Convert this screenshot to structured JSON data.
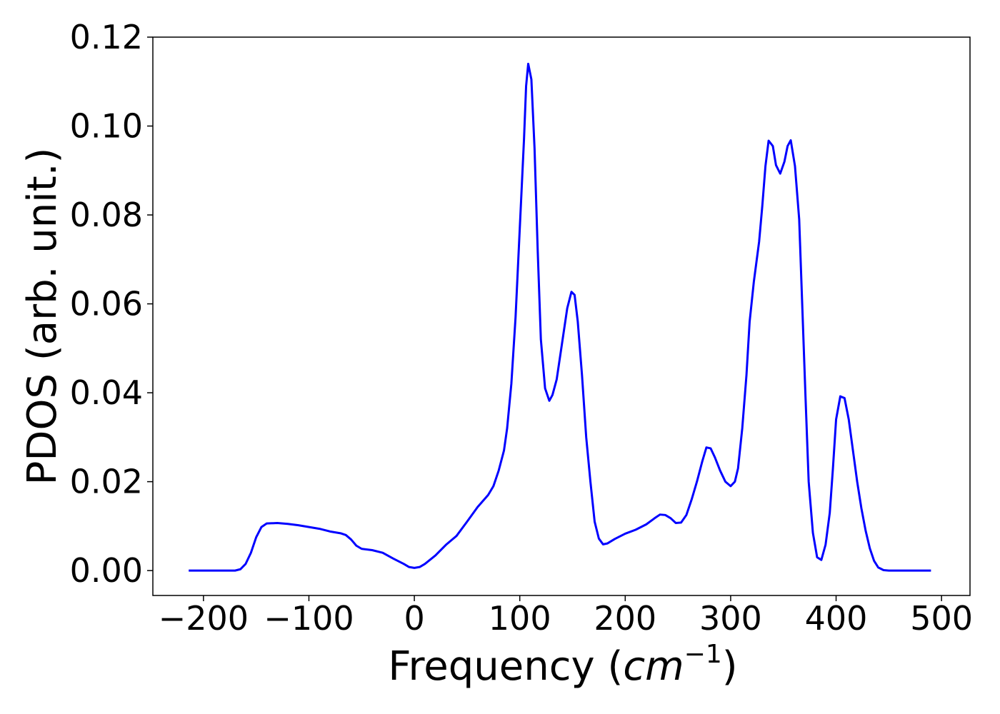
{
  "chart_data": {
    "type": "line",
    "xlabel": {
      "text": "Frequency (",
      "math": "cm",
      "sup": "−1",
      "close": ")"
    },
    "ylabel": "PDOS (arb. unit.)",
    "xlim": [
      -248,
      527
    ],
    "ylim": [
      -0.0056,
      0.12
    ],
    "xticks": [
      {
        "value": -200,
        "label": "−200"
      },
      {
        "value": -100,
        "label": "−100"
      },
      0,
      100,
      200,
      300,
      400,
      500
    ],
    "yticks": [
      {
        "value": 0,
        "label": "0.00"
      },
      {
        "value": 0.02,
        "label": "0.02"
      },
      {
        "value": 0.04,
        "label": "0.04"
      },
      {
        "value": 0.06,
        "label": "0.06"
      },
      {
        "value": 0.08,
        "label": "0.08"
      },
      {
        "value": 0.1,
        "label": "0.10"
      },
      {
        "value": 0.12,
        "label": "0.12"
      }
    ],
    "grid": false,
    "x": [
      -214,
      -170,
      -165,
      -160,
      -155,
      -150,
      -145,
      -140,
      -130,
      -120,
      -110,
      -100,
      -90,
      -80,
      -70,
      -65,
      -60,
      -55,
      -50,
      -40,
      -30,
      -20,
      -10,
      -5,
      0,
      5,
      10,
      20,
      30,
      40,
      50,
      60,
      70,
      75,
      80,
      85,
      88,
      92,
      96,
      100,
      104,
      106,
      108,
      111,
      114,
      117,
      120,
      124,
      128,
      131,
      135,
      140,
      145,
      149,
      152,
      155,
      159,
      163,
      167,
      171,
      175,
      179,
      183,
      190,
      200,
      210,
      220,
      228,
      233,
      238,
      243,
      248,
      253,
      258,
      263,
      268,
      273,
      277,
      281,
      285,
      290,
      295,
      300,
      304,
      307,
      311,
      315,
      318,
      322,
      327,
      330,
      333,
      336,
      340,
      343,
      347,
      351,
      354,
      357,
      361,
      365,
      368,
      371,
      374,
      378,
      382,
      386,
      390,
      394,
      397,
      400,
      404,
      408,
      412,
      416,
      420,
      424,
      428,
      432,
      436,
      440,
      445,
      450,
      490
    ],
    "series": [
      {
        "name": "PDOS",
        "color": "#0000ff",
        "values": [
          0,
          0,
          0.0003,
          0.0015,
          0.004,
          0.0075,
          0.0098,
          0.0106,
          0.0107,
          0.0105,
          0.0102,
          0.0098,
          0.0094,
          0.0088,
          0.0084,
          0.008,
          0.007,
          0.0056,
          0.0049,
          0.0046,
          0.004,
          0.0027,
          0.0015,
          0.0008,
          0.0006,
          0.0008,
          0.0015,
          0.0034,
          0.0058,
          0.0078,
          0.011,
          0.0143,
          0.017,
          0.019,
          0.0225,
          0.027,
          0.032,
          0.042,
          0.057,
          0.077,
          0.097,
          0.109,
          0.114,
          0.1105,
          0.095,
          0.072,
          0.052,
          0.041,
          0.0382,
          0.0395,
          0.043,
          0.051,
          0.059,
          0.0627,
          0.062,
          0.056,
          0.044,
          0.03,
          0.02,
          0.011,
          0.0072,
          0.0059,
          0.0061,
          0.0071,
          0.0083,
          0.0092,
          0.0104,
          0.0118,
          0.0126,
          0.0125,
          0.0118,
          0.0107,
          0.0108,
          0.0125,
          0.016,
          0.02,
          0.0245,
          0.0277,
          0.0275,
          0.0255,
          0.0225,
          0.02,
          0.019,
          0.02,
          0.023,
          0.032,
          0.044,
          0.056,
          0.065,
          0.074,
          0.082,
          0.091,
          0.0967,
          0.0955,
          0.0912,
          0.0893,
          0.092,
          0.0955,
          0.0968,
          0.091,
          0.079,
          0.059,
          0.039,
          0.02,
          0.0085,
          0.003,
          0.0024,
          0.0058,
          0.013,
          0.023,
          0.034,
          0.0392,
          0.0388,
          0.034,
          0.027,
          0.02,
          0.014,
          0.009,
          0.005,
          0.0022,
          0.0007,
          0.0001,
          0,
          0
        ]
      }
    ]
  }
}
